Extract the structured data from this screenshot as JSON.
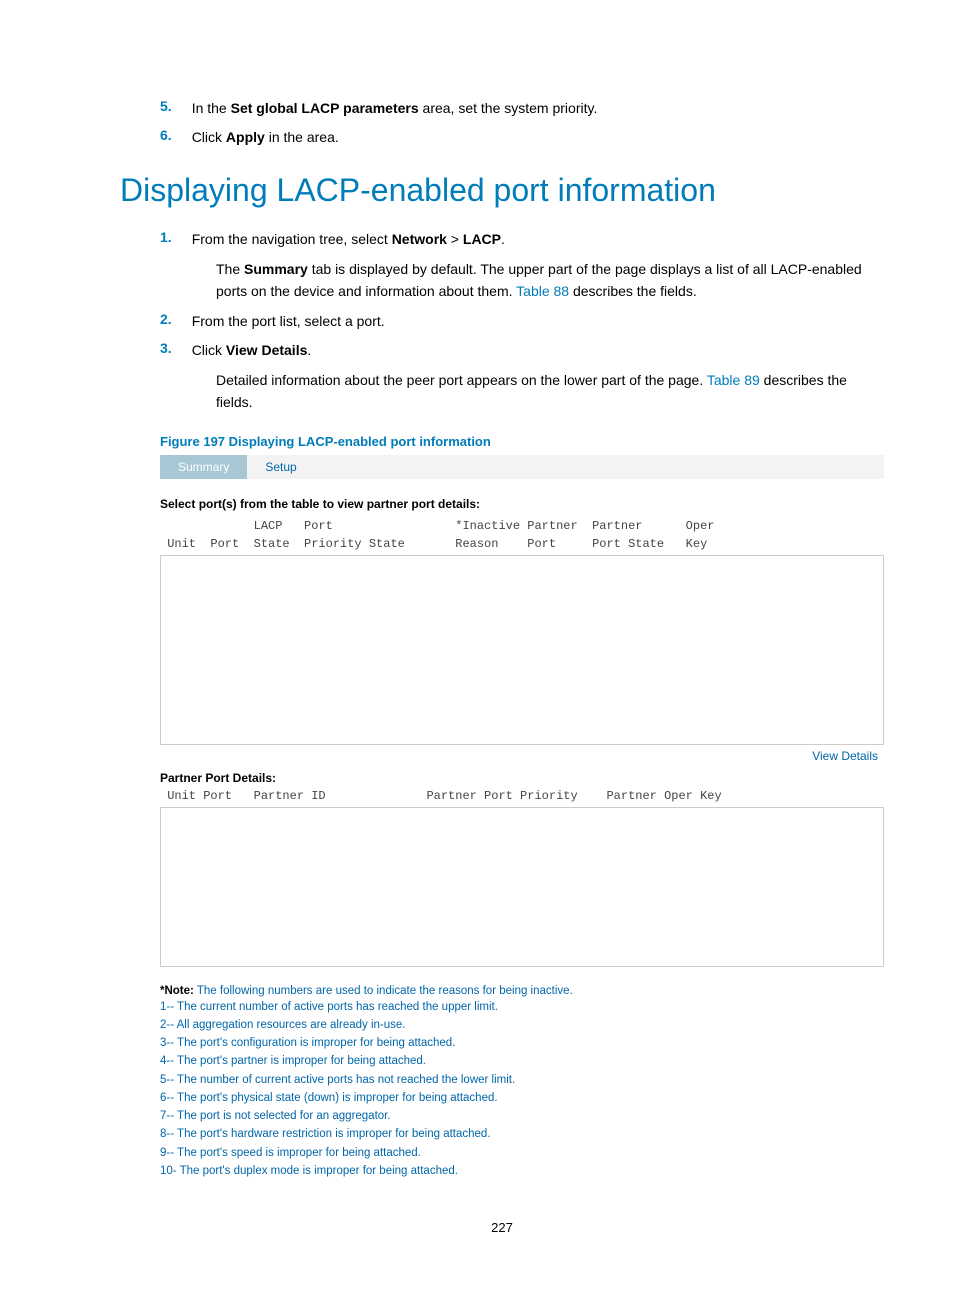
{
  "steps_top": [
    {
      "n": "5.",
      "html": "In the <b>Set global LACP parameters</b> area, set the system priority."
    },
    {
      "n": "6.",
      "html": "Click <b>Apply</b> in the area."
    }
  ],
  "heading": "Displaying LACP-enabled port information",
  "steps_main": [
    {
      "n": "1.",
      "html": "From the navigation tree, select <b>Network</b> > <b>LACP</b>.",
      "cont": "The <b>Summary</b> tab is displayed by default. The upper part of the page displays a list of all LACP-enabled ports on the device and information about them. <span class=\"link-inline\">Table 88</span> describes the fields."
    },
    {
      "n": "2.",
      "html": "From the port list, select a port."
    },
    {
      "n": "3.",
      "html": "Click <b>View Details</b>.",
      "cont": "Detailed information about the peer port appears on the lower part of the page. <span class=\"link-inline\">Table 89</span> describes the fields."
    }
  ],
  "figure_caption": "Figure 197 Displaying LACP-enabled port information",
  "tabs": {
    "active": "Summary",
    "other": "Setup"
  },
  "panel": {
    "select_label": "Select port(s) from the table to view partner port details:",
    "header1": "             LACP   Port                 *Inactive Partner  Partner      Oper",
    "header2": " Unit  Port  State  Priority State       Reason    Port     Port State   Key",
    "view_details": "View Details",
    "partner_label": "Partner Port Details:",
    "partner_header": " Unit Port   Partner ID              Partner Port Priority    Partner Oper Key"
  },
  "note_bold": "*Note:",
  "note_rest": " The following numbers are used to indicate the reasons for being inactive.",
  "note_lines": [
    "1--  The current number of active ports has reached the upper limit.",
    "2--  All aggregation resources are already in-use.",
    "3--  The port's configuration is improper for being attached.",
    "4--  The port's partner is improper for being attached.",
    "5--  The number of current active ports has not reached the lower limit.",
    "6--  The port's physical state (down) is improper for being attached.",
    "7--  The port is not selected for an aggregator.",
    "8--  The port's hardware restriction is improper for being attached.",
    "9--  The port's speed is improper for being attached.",
    "10- The port's duplex mode is improper for being attached."
  ],
  "page_number": "227"
}
